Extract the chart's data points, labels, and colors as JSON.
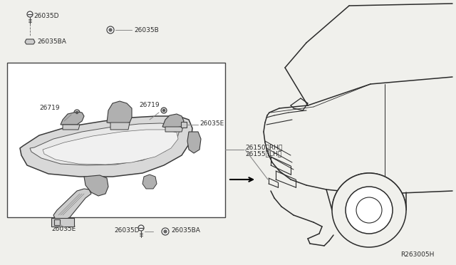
{
  "bg_color": "#f0f0ec",
  "line_color": "#2a2a2a",
  "gray_color": "#888888",
  "box_color": "#ffffff",
  "box_border": "#444444",
  "ref_code": "R263005H",
  "font_size": 6.5,
  "parts": {
    "26035D_top": "26035D",
    "26035BA_top": "26035BA",
    "26035B": "26035B",
    "26719_left": "26719",
    "26719_right": "26719",
    "26035E_right": "26035E",
    "26035E_bottom": "26035E",
    "26150": "26150（RH）",
    "26155": "26155（LH）",
    "26035D_bot": "26035D",
    "26035BA_bot": "26035BA"
  },
  "lamp_outer": {
    "x": [
      32,
      55,
      95,
      145,
      185,
      220,
      250,
      265,
      270,
      268,
      255,
      230,
      200,
      158,
      112,
      68,
      38,
      30,
      28,
      32
    ],
    "y": [
      205,
      190,
      178,
      170,
      165,
      163,
      163,
      168,
      180,
      198,
      218,
      232,
      243,
      248,
      248,
      244,
      232,
      218,
      208,
      205
    ]
  },
  "lamp_inner1": {
    "x": [
      48,
      75,
      115,
      158,
      195,
      225,
      245,
      252,
      248,
      232,
      200,
      162,
      122,
      85,
      58,
      44,
      42,
      48
    ],
    "y": [
      207,
      195,
      185,
      178,
      174,
      173,
      175,
      183,
      196,
      212,
      225,
      231,
      232,
      230,
      222,
      213,
      208,
      207
    ]
  },
  "lamp_inner2": {
    "x": [
      60,
      90,
      130,
      170,
      205,
      232,
      248,
      250,
      240,
      218,
      185,
      148,
      110,
      78,
      62,
      60
    ],
    "y": [
      210,
      200,
      191,
      185,
      182,
      182,
      186,
      195,
      208,
      220,
      228,
      231,
      230,
      224,
      216,
      210
    ]
  }
}
